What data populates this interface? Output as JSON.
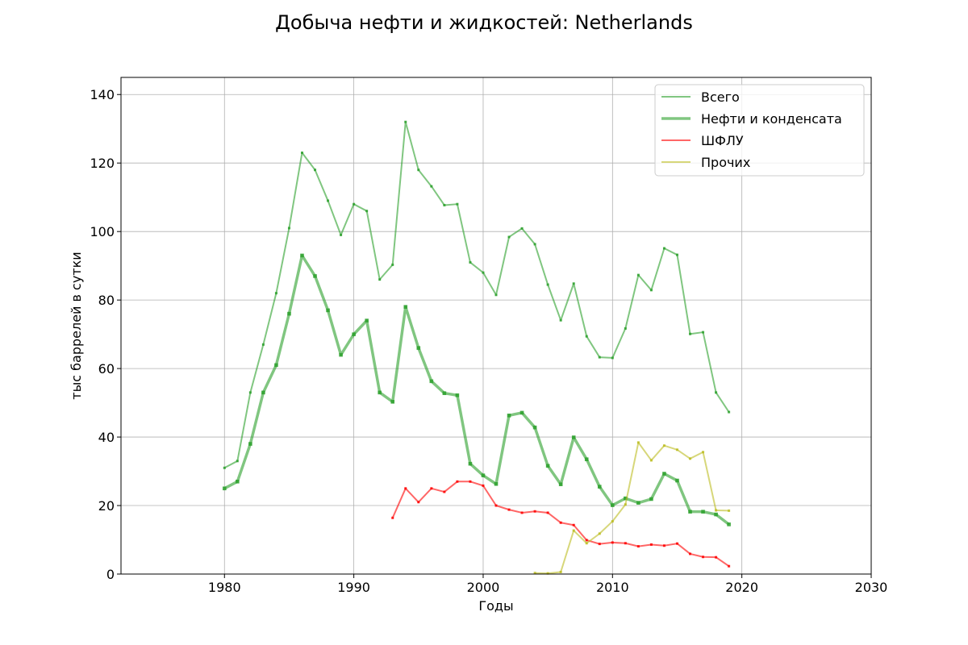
{
  "chart_data": {
    "type": "line",
    "title": "Добыча нефти и жидкостей: Netherlands",
    "xlabel": "Годы",
    "ylabel": "тыс баррелей в сутки",
    "xlim": [
      1972,
      2030
    ],
    "ylim": [
      0,
      145
    ],
    "xticks": [
      1980,
      1990,
      2000,
      2010,
      2020,
      2030
    ],
    "yticks": [
      0,
      20,
      40,
      60,
      80,
      100,
      120,
      140
    ],
    "grid": true,
    "legend_position": "top-right",
    "series": [
      {
        "name": "Всего",
        "color": "#2ca02c",
        "style": "thin",
        "x": [
          1980,
          1981,
          1982,
          1983,
          1984,
          1985,
          1986,
          1987,
          1988,
          1989,
          1990,
          1991,
          1992,
          1993,
          1994,
          1995,
          1996,
          1997,
          1998,
          1999,
          2000,
          2001,
          2002,
          2003,
          2004,
          2005,
          2006,
          2007,
          2008,
          2009,
          2010,
          2011,
          2012,
          2013,
          2014,
          2015,
          2016,
          2017,
          2018,
          2019
        ],
        "y": [
          31,
          33,
          53,
          67,
          82,
          101,
          123,
          118,
          109,
          99,
          108,
          106,
          86,
          90.3,
          132,
          118,
          113.2,
          107.7,
          108,
          91,
          88,
          81.5,
          98.4,
          100.9,
          96.3,
          84.5,
          74.1,
          84.8,
          69.4,
          63.3,
          63.1,
          71.7,
          87.3,
          82.9,
          95.1,
          93.2,
          70.1,
          70.6,
          53,
          47.3
        ]
      },
      {
        "name": "Нефти и конденсата",
        "color": "#2ca02c",
        "style": "thick",
        "x": [
          1980,
          1981,
          1982,
          1983,
          1984,
          1985,
          1986,
          1987,
          1988,
          1989,
          1990,
          1991,
          1992,
          1993,
          1994,
          1995,
          1996,
          1997,
          1998,
          1999,
          2000,
          2001,
          2002,
          2003,
          2004,
          2005,
          2006,
          2007,
          2008,
          2009,
          2010,
          2011,
          2012,
          2013,
          2014,
          2015,
          2016,
          2017,
          2018,
          2019
        ],
        "y": [
          25,
          27,
          38,
          53,
          61,
          76,
          93,
          87,
          77,
          64,
          70,
          74,
          53,
          50.3,
          78,
          66,
          56.3,
          52.8,
          52.2,
          32.2,
          28.8,
          26.3,
          46.3,
          47.1,
          42.8,
          31.6,
          26.2,
          39.9,
          33.5,
          25.5,
          20.1,
          22.1,
          20.8,
          21.9,
          29.3,
          27.3,
          18.2,
          18.2,
          17.4,
          14.5
        ]
      },
      {
        "name": "ШФЛУ",
        "color": "#ff0000",
        "style": "thin",
        "x": [
          1993,
          1994,
          1995,
          1996,
          1997,
          1998,
          1999,
          2000,
          2001,
          2002,
          2003,
          2004,
          2005,
          2006,
          2007,
          2008,
          2009,
          2010,
          2011,
          2012,
          2013,
          2014,
          2015,
          2016,
          2017,
          2018,
          2019
        ],
        "y": [
          16.4,
          25,
          21,
          25,
          24,
          27,
          27,
          25.8,
          20,
          18.8,
          17.9,
          18.3,
          17.9,
          15,
          14.3,
          9.9,
          8.8,
          9.2,
          9,
          8.1,
          8.6,
          8.3,
          8.9,
          5.9,
          5,
          4.9,
          2.3
        ]
      },
      {
        "name": "Прочих",
        "color": "#bcbd22",
        "style": "thin",
        "x": [
          2004,
          2005,
          2006,
          2007,
          2008,
          2009,
          2010,
          2011,
          2012,
          2013,
          2014,
          2015,
          2016,
          2017,
          2018,
          2019
        ],
        "y": [
          0.3,
          0.2,
          0.6,
          12.7,
          9,
          11.8,
          15.4,
          20.3,
          38.4,
          33.2,
          37.5,
          36.3,
          33.7,
          35.6,
          18.6,
          18.5
        ]
      }
    ]
  }
}
